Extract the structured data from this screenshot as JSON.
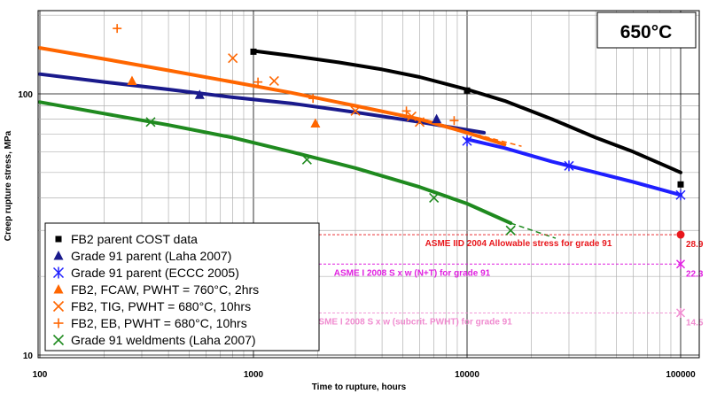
{
  "chart_data": {
    "type": "scatter",
    "temperature_label": "650°C",
    "xlabel": "Time to rupture, hours",
    "ylabel": "Creep rupture stress, MPa",
    "xscale": "log",
    "yscale": "log",
    "xlim": [
      100,
      130000
    ],
    "ylim": [
      10,
      300
    ],
    "grid": true,
    "legend_position": "bottom-left",
    "xticks": [
      "100",
      "1000",
      "10000",
      "100000"
    ],
    "yticks": [
      "10",
      "100"
    ],
    "colors": {
      "black": "#000000",
      "navy": "#1a1a8c",
      "blue": "#1f1fff",
      "orange": "#ff6600",
      "green": "#1f8a1f",
      "red": "#e8161b",
      "magenta": "#e020e0",
      "pink": "#f08cd0"
    },
    "series": [
      {
        "name": "FB2 parent COST data",
        "marker": "square",
        "color": "#000000",
        "x": [
          1000,
          10000,
          100000
        ],
        "y": [
          145,
          103,
          45
        ]
      },
      {
        "name": "Grade 91 parent (Laha 2007)",
        "marker": "triangle",
        "color": "#1a1a8c",
        "x": [
          560,
          7200
        ],
        "y": [
          99,
          80
        ]
      },
      {
        "name": "Grade 91 parent (ECCC 2005)",
        "marker": "star",
        "color": "#1f1fff",
        "x": [
          10000,
          30000,
          100000
        ],
        "y": [
          66,
          53,
          41
        ]
      },
      {
        "name": "FB2, FCAW, PWHT = 760°C, 2hrs",
        "marker": "triangle",
        "color": "#ff6600",
        "x": [
          270,
          1950
        ],
        "y": [
          112,
          77
        ]
      },
      {
        "name": "FB2, TIG, PWHT = 680°C, 10hrs",
        "marker": "x",
        "color": "#ff6600",
        "x": [
          800,
          1250,
          3000,
          5500,
          6000
        ],
        "y": [
          137,
          112,
          86,
          82,
          78
        ]
      },
      {
        "name": "FB2, EB, PWHT = 680°C, 10hrs",
        "marker": "plus",
        "color": "#ff6600",
        "x": [
          230,
          1050,
          1900,
          5200,
          8700
        ],
        "y": [
          178,
          111,
          96,
          86,
          79
        ]
      },
      {
        "name": "Grade 91 weldments (Laha 2007)",
        "marker": "x",
        "color": "#1f8a1f",
        "x": [
          330,
          1780,
          7000,
          16000
        ],
        "y": [
          78,
          56,
          40,
          30
        ]
      }
    ],
    "fit_lines": [
      {
        "color": "#000000",
        "x": [
          1000,
          1500,
          2500,
          4000,
          6000,
          10000,
          15000,
          25000,
          40000,
          60000,
          100000
        ],
        "y": [
          146,
          140,
          132,
          124,
          116,
          104,
          94,
          80,
          68,
          60,
          50
        ]
      },
      {
        "color": "#1a1a8c",
        "x": [
          100,
          200,
          400,
          800,
          1500,
          3000,
          6000,
          12000
        ],
        "y": [
          119,
          111,
          104,
          97,
          92,
          85,
          78,
          71
        ]
      },
      {
        "color": "#1f1fff",
        "x": [
          10000,
          15000,
          25000,
          40000,
          60000,
          100000
        ],
        "y": [
          67,
          62,
          55,
          50,
          46,
          41
        ]
      },
      {
        "color": "#ff6600",
        "x": [
          100,
          200,
          400,
          800,
          1500,
          3000,
          6000,
          10000,
          15000
        ],
        "y": [
          150,
          136,
          123,
          111,
          101,
          90,
          80,
          71,
          64
        ]
      },
      {
        "color": "#1f8a1f",
        "x": [
          100,
          200,
          400,
          800,
          1500,
          3000,
          6000,
          10000,
          16000
        ],
        "y": [
          93,
          84,
          76,
          68,
          60,
          52,
          44,
          38,
          32
        ]
      }
    ],
    "extrapolations": [
      {
        "color": "#ff6600",
        "x": [
          11000,
          18000
        ],
        "y": [
          70,
          63
        ]
      },
      {
        "color": "#1f8a1f",
        "x": [
          16000,
          26000
        ],
        "y": [
          32,
          28
        ]
      }
    ],
    "reference_lines": [
      {
        "label": "ASME IID 2004 Allowable stress for grade 91",
        "value_label": "28.9",
        "y": 28.9,
        "color": "#e8161b",
        "marker": "circle"
      },
      {
        "label": "ASME I 2008 S x w (N+T) for grade 91",
        "value_label": "22.3",
        "y": 22.3,
        "color": "#e020e0",
        "marker": "star"
      },
      {
        "label": "ASME I 2008 S x w (subcrit. PWHT) for grade 91",
        "value_label": "14.5",
        "y": 14.5,
        "color": "#f08cd0",
        "marker": "star"
      }
    ]
  }
}
